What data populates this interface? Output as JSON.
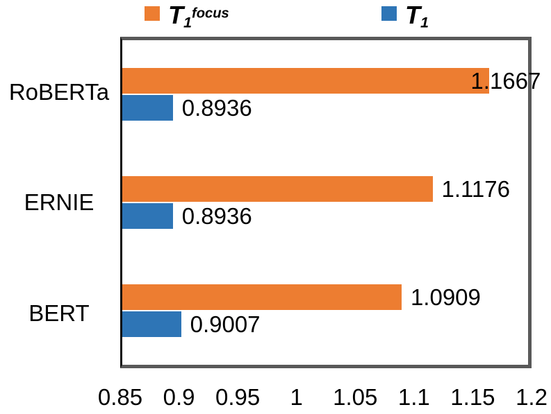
{
  "chart_data": {
    "type": "bar",
    "orientation": "horizontal",
    "title": "",
    "xlabel": "",
    "ylabel": "",
    "categories": [
      "RoBERTa",
      "ERNIE",
      "BERT"
    ],
    "series": [
      {
        "name": "T1focus",
        "legend": {
          "base": "T",
          "sub": "1",
          "sup": "focus"
        },
        "color": "#ED7D31",
        "values": [
          1.1667,
          1.1176,
          1.0909
        ],
        "data_labels": [
          "1.1667",
          "1.1176",
          "1.0909"
        ]
      },
      {
        "name": "T1",
        "legend": {
          "base": "T",
          "sub": "1",
          "sup": ""
        },
        "color": "#2E75B6",
        "values": [
          0.8936,
          0.8936,
          0.9007
        ],
        "data_labels": [
          "0.8936",
          "0.8936",
          "0.9007"
        ]
      }
    ],
    "x_axis": {
      "min": 0.85,
      "max": 1.2,
      "tick_step": 0.05,
      "tick_labels": [
        "0.85",
        "0.9",
        "0.95",
        "1",
        "1.05",
        "1.1",
        "1.15",
        "1.2"
      ]
    },
    "grid": false,
    "legend_position": "top",
    "colors": {
      "plot_border": "#595959",
      "axis_line": "#0d0d0d",
      "text": "#000000",
      "background": "#FFFFFF"
    }
  }
}
